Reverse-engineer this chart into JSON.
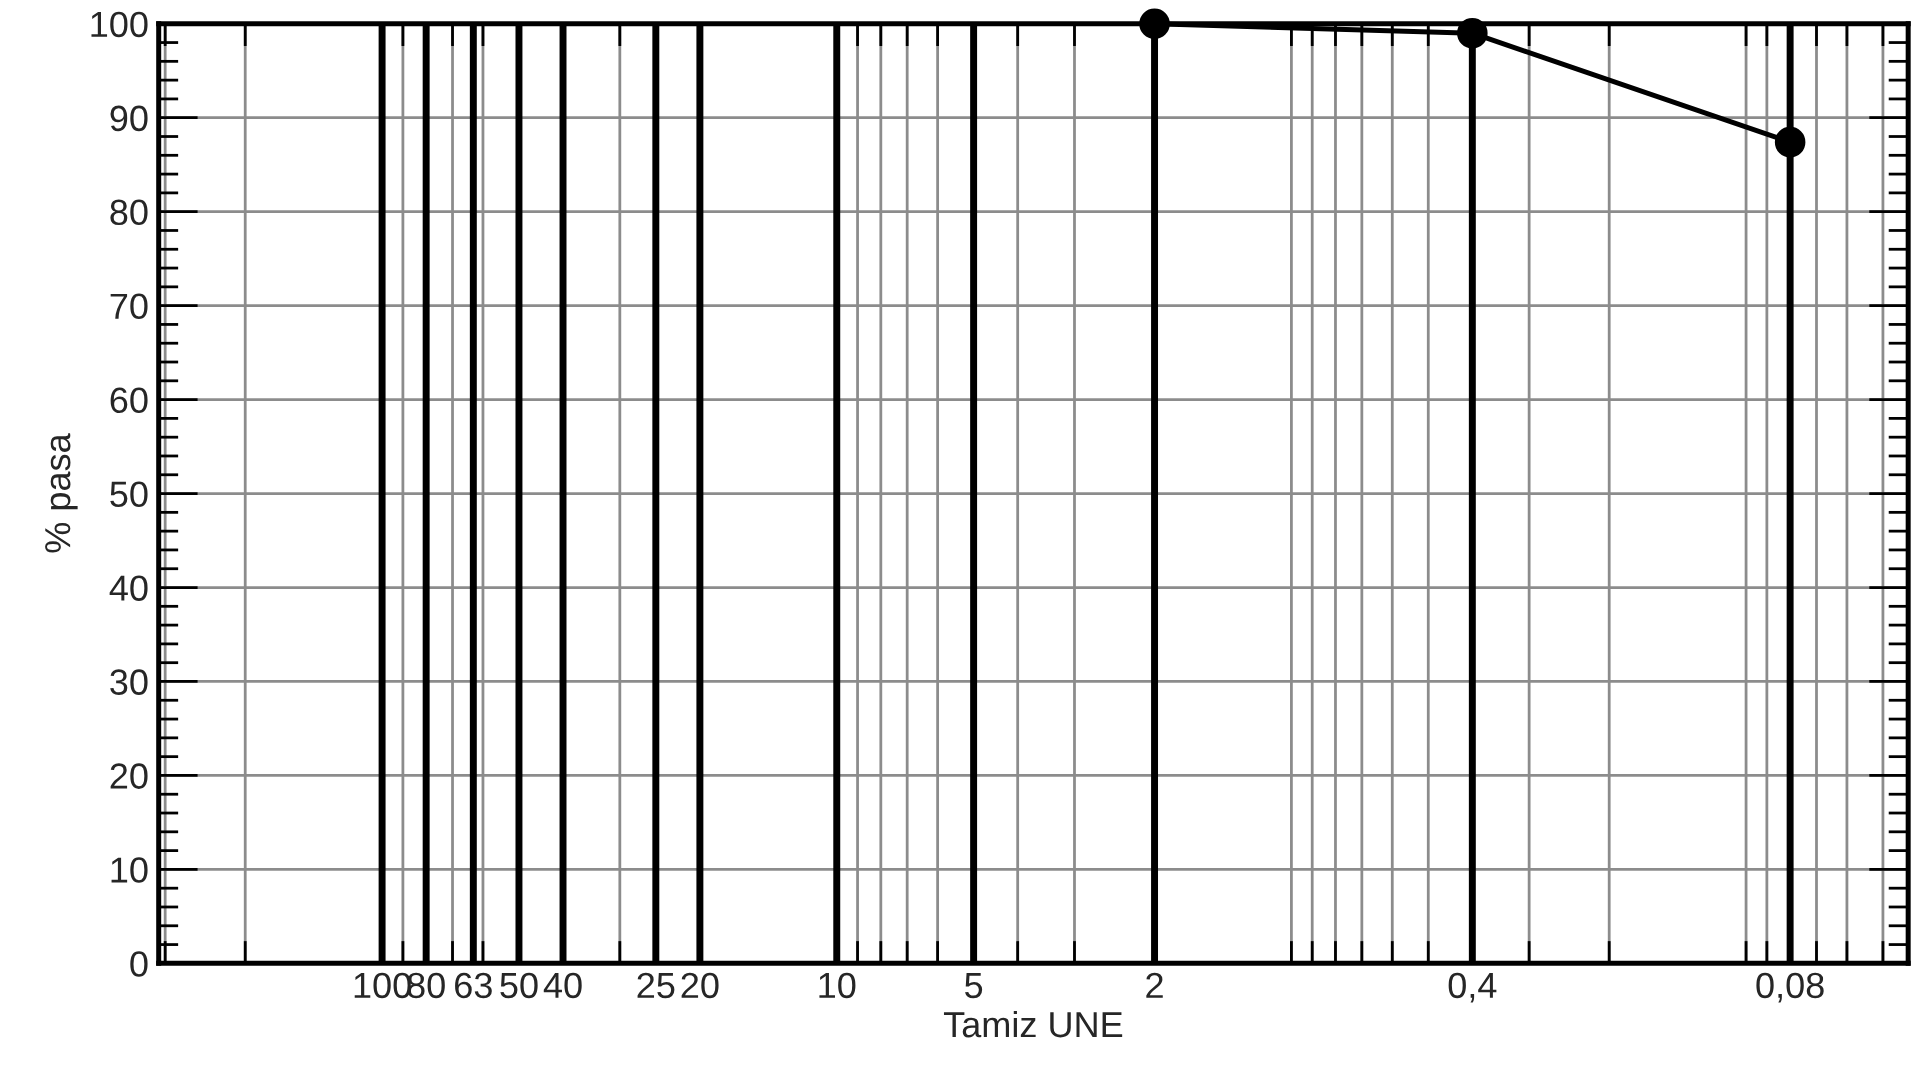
{
  "chart_data": {
    "type": "line",
    "xlabel": "Tamiz UNE",
    "ylabel": "% pasa",
    "x": [
      2,
      0.4,
      0.08
    ],
    "series": [
      {
        "color": "#000000",
        "values": [
          100,
          99,
          87.4
        ]
      }
    ],
    "log": "x",
    "marker": "circle",
    "line_style": "solid",
    "grid": true,
    "xlim": [
      310,
      0.044
    ],
    "ylim": [
      0,
      100
    ],
    "xticks": [
      100,
      80,
      63,
      50,
      40,
      25,
      20,
      10,
      5,
      2,
      {
        "value": 0.4,
        "label": "0,4"
      },
      {
        "value": 0.08,
        "label": "0,08"
      }
    ],
    "yticks": [
      0,
      10,
      20,
      30,
      40,
      50,
      60,
      70,
      80,
      90,
      100
    ],
    "ref_lines": [
      {
        "axis": "x",
        "value": 100,
        "color": "#000000"
      },
      {
        "axis": "x",
        "value": 80,
        "color": "#000000"
      },
      {
        "axis": "x",
        "value": 63,
        "color": "#000000"
      },
      {
        "axis": "x",
        "value": 50,
        "color": "#000000"
      },
      {
        "axis": "x",
        "value": 40,
        "color": "#000000"
      },
      {
        "axis": "x",
        "value": 25,
        "color": "#000000"
      },
      {
        "axis": "x",
        "value": 20,
        "color": "#000000"
      },
      {
        "axis": "x",
        "value": 10,
        "color": "#000000"
      },
      {
        "axis": "x",
        "value": 5,
        "color": "#000000"
      },
      {
        "axis": "x",
        "value": 2,
        "color": "#000000"
      },
      {
        "axis": "x",
        "value": 0.4,
        "color": "#000000"
      },
      {
        "axis": "x",
        "value": 0.08,
        "color": "#000000"
      }
    ]
  }
}
